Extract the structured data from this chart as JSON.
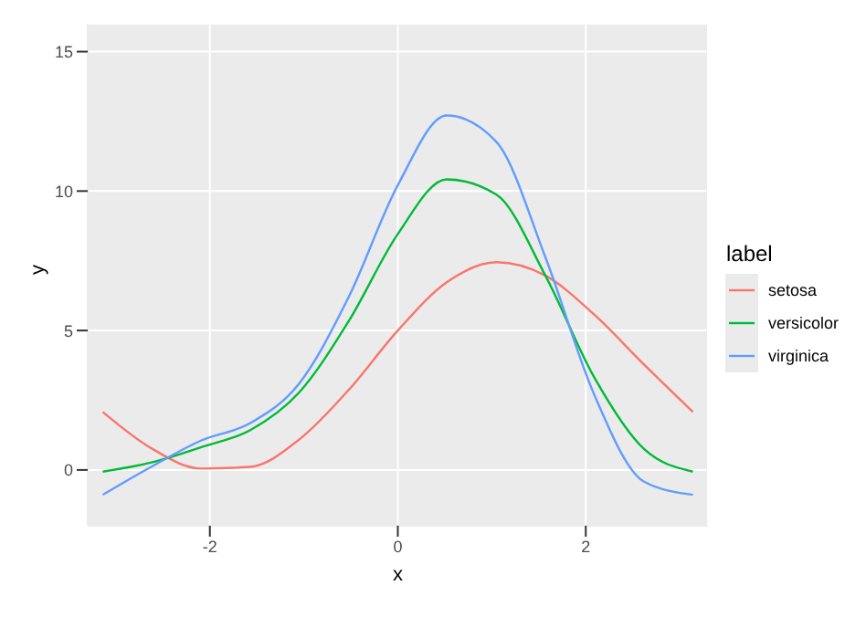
{
  "chart_data": {
    "type": "line",
    "xlabel": "x",
    "ylabel": "y",
    "legend_title": "label",
    "legend": "right",
    "grid": true,
    "marker": "none",
    "line_style": "solid",
    "x": [
      -3.14,
      -2.62,
      -2.09,
      -1.57,
      -1.05,
      -0.52,
      0,
      0.52,
      1.05,
      1.57,
      2.09,
      2.62,
      3.14
    ],
    "xlim": [
      -3.3,
      3.3
    ],
    "xticks": [
      -2,
      0,
      2
    ],
    "ylim": [
      -2,
      16
    ],
    "yticks": [
      0,
      5,
      10,
      15
    ],
    "series": [
      {
        "name": "setosa",
        "color": "#f8766d",
        "values": [
          2.08,
          0.77,
          0.05,
          0.11,
          1.09,
          2.88,
          5.0,
          6.73,
          7.45,
          6.97,
          5.57,
          3.78,
          2.08
        ]
      },
      {
        "name": "versicolor",
        "color": "#00ba38",
        "values": [
          -0.06,
          0.27,
          0.82,
          1.43,
          2.78,
          5.35,
          8.46,
          10.42,
          9.87,
          6.97,
          3.32,
          0.75,
          -0.06
        ]
      },
      {
        "name": "virginica",
        "color": "#619cff",
        "values": [
          -0.89,
          0.12,
          1.06,
          1.68,
          3.1,
          6.22,
          10.21,
          12.71,
          11.76,
          7.63,
          2.7,
          -0.42,
          -0.89
        ]
      }
    ]
  }
}
